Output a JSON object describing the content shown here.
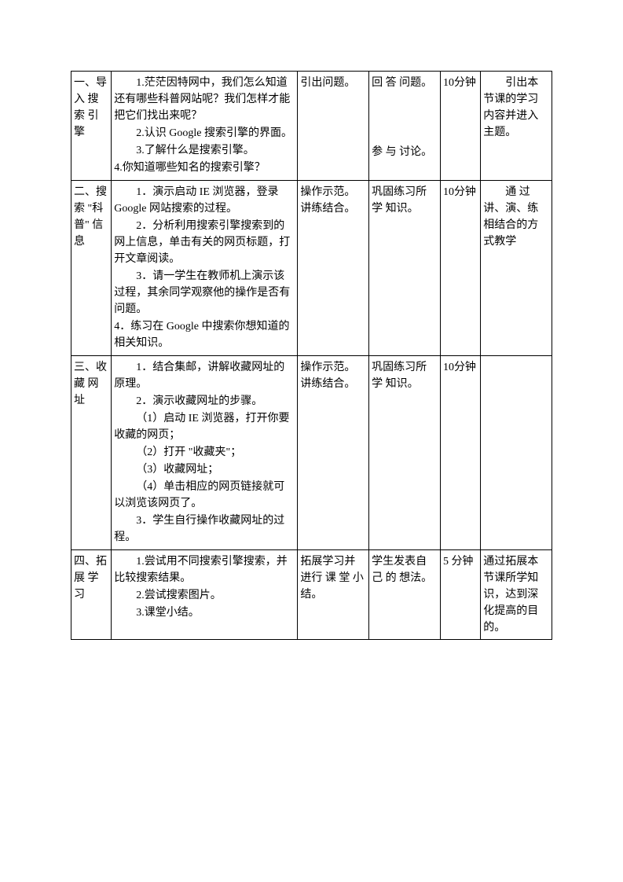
{
  "rows": [
    {
      "stage": "一、导入 搜索 引擎",
      "content": [
        {
          "cls": "indent",
          "text": "1.茫茫因特网中，我们怎么知道还有哪些科普网站呢？我们怎样才能把它们找出来呢？"
        },
        {
          "cls": "indent",
          "text": "2.认识 Google 搜索引擎的界面。"
        },
        {
          "cls": "indent",
          "text": "3.了解什么是搜索引擎。"
        },
        {
          "cls": "",
          "text": "4.你知道哪些知名的搜索引擎？"
        }
      ],
      "teacher": "引出问题。",
      "student_lines": [
        "回 答 问题。",
        "",
        "",
        "",
        "参 与 讨论。"
      ],
      "time": "10分钟",
      "intent": "　　引出本节课的学习内容并进入主题。"
    },
    {
      "stage": "二、搜索 \"科普\" 信息",
      "content": [
        {
          "cls": "indent",
          "text": "1．演示启动 IE 浏览器，登录Google 网站搜索的过程。"
        },
        {
          "cls": "indent",
          "text": "2．分析利用搜索引擎搜索到的网上信息，单击有关的网页标题，打开文章阅读。"
        },
        {
          "cls": "indent",
          "text": "3．请一学生在教师机上演示该过程，其余同学观察他的操作是否有问题。"
        },
        {
          "cls": "",
          "text": "4．练习在 Google 中搜索你想知道的相关知识。"
        }
      ],
      "teacher": "操作示范。讲练结合。",
      "student_lines": [
        "巩固练习所 学 知识。"
      ],
      "time": "10分钟",
      "intent": "　　通 过讲、演、练相结合的方式教学"
    },
    {
      "stage": "三、收藏 网址",
      "content": [
        {
          "cls": "indent",
          "text": "1．结合集邮，讲解收藏网址的原理。"
        },
        {
          "cls": "indent",
          "text": "2．演示收藏网址的步骤。"
        },
        {
          "cls": "indent",
          "text": "（1）启动 IE 浏览器，打开你要收藏的网页；"
        },
        {
          "cls": "indent",
          "text": "（2）打开 \"收藏夹\"；"
        },
        {
          "cls": "indent",
          "text": "（3）收藏网址；"
        },
        {
          "cls": "indent",
          "text": "（4）单击相应的网页链接就可以浏览该网页了。"
        },
        {
          "cls": "indent",
          "text": "3．学生自行操作收藏网址的过程。"
        }
      ],
      "teacher": "操作示范。讲练结合。",
      "student_lines": [
        "巩固练习所 学 知识。"
      ],
      "time": "10分钟",
      "intent": ""
    },
    {
      "stage": "四、拓展 学习",
      "content": [
        {
          "cls": "indent",
          "text": "1.尝试用不同搜索引擎搜索，并比较搜索结果。"
        },
        {
          "cls": "indent",
          "text": "2.尝试搜索图片。"
        },
        {
          "cls": "indent",
          "text": "3.课堂小结。"
        }
      ],
      "teacher": "拓展学习并进行 课 堂 小结。",
      "student_lines": [
        "学生发表自 己 的 想法。"
      ],
      "time": "5 分钟",
      "intent": "通过拓展本节课所学知识，达到深化提高的目的。"
    }
  ]
}
